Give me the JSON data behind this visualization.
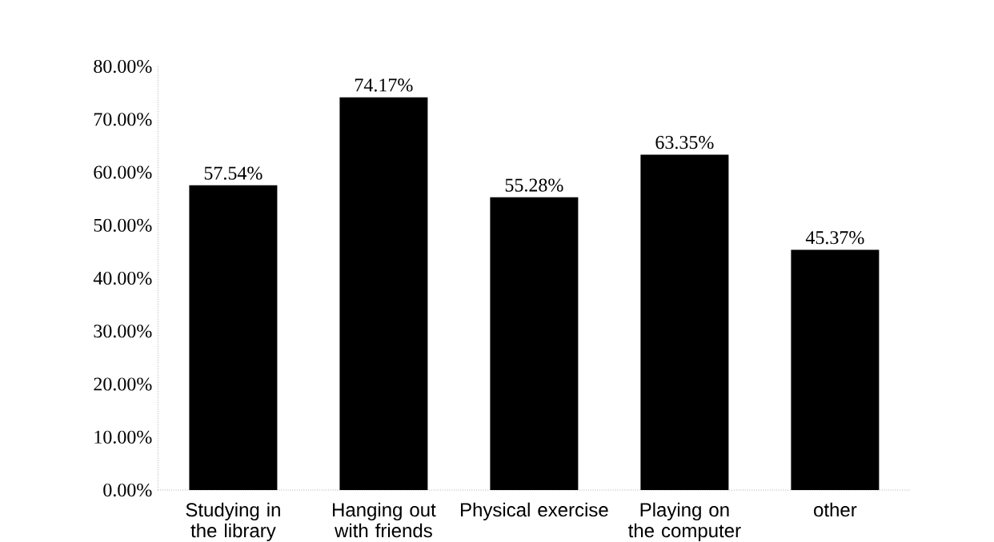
{
  "chart_data": {
    "type": "bar",
    "categories": [
      "Studying in the library",
      "Hanging out with friends",
      "Physical exercise",
      "Playing on the computer",
      "other"
    ],
    "values": [
      57.54,
      74.17,
      55.28,
      63.35,
      45.37
    ],
    "value_labels": [
      "57.54%",
      "74.17%",
      "55.28%",
      "63.35%",
      "45.37%"
    ],
    "color": "#000000",
    "ylim": [
      0,
      80
    ],
    "yticks": [
      {
        "value": 0,
        "label": "0.00%"
      },
      {
        "value": 10,
        "label": "10.00%"
      },
      {
        "value": 20,
        "label": "20.00%"
      },
      {
        "value": 30,
        "label": "30.00%"
      },
      {
        "value": 40,
        "label": "40.00%"
      },
      {
        "value": 50,
        "label": "50.00%"
      },
      {
        "value": 60,
        "label": "60.00%"
      },
      {
        "value": 70,
        "label": "70.00%"
      },
      {
        "value": 80,
        "label": "80.00%"
      }
    ],
    "grid": false
  }
}
